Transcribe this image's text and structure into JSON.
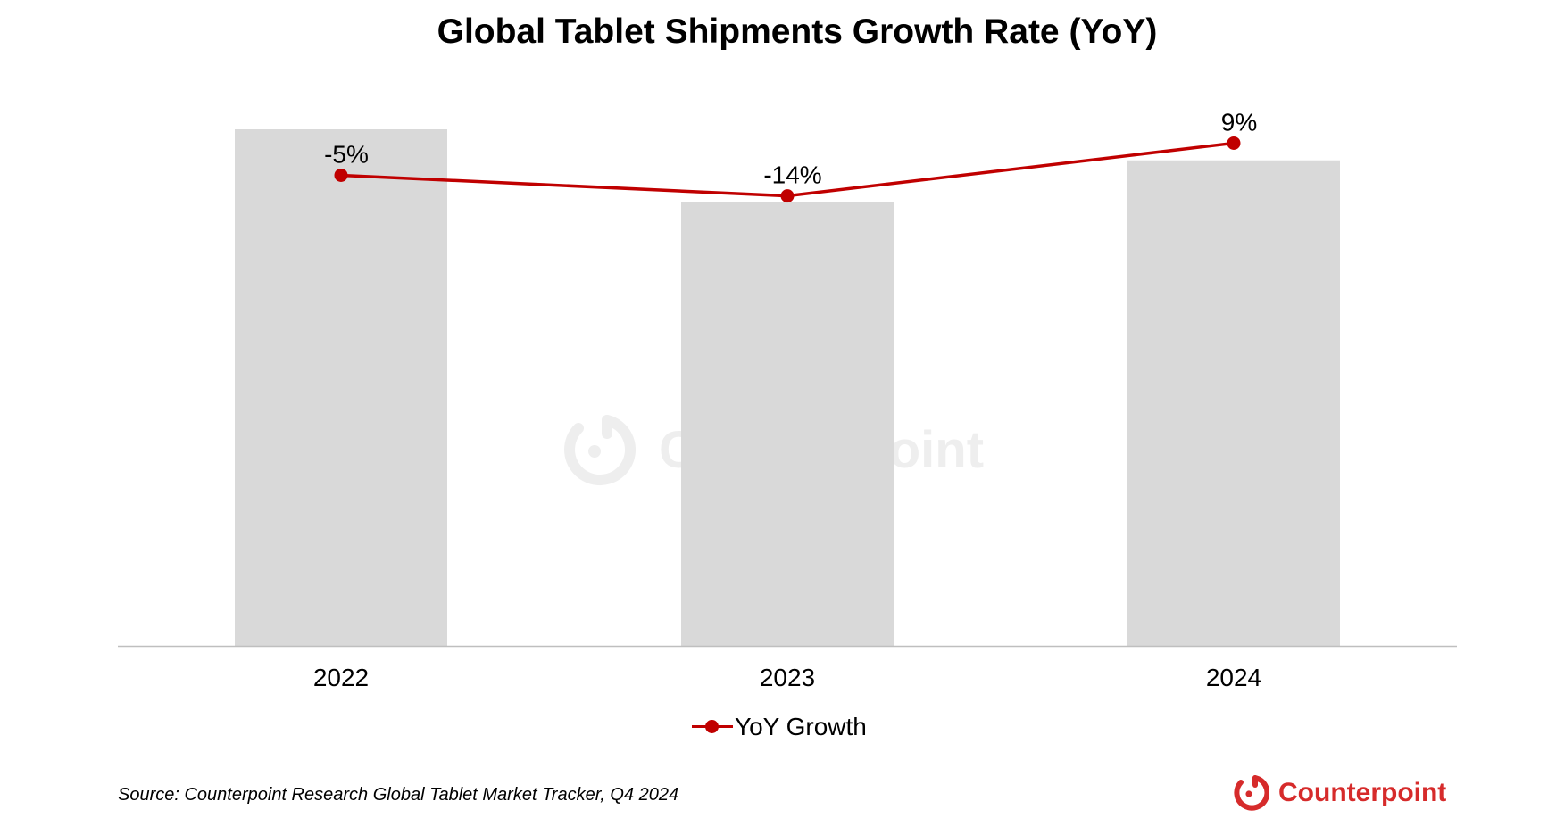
{
  "chart_data": {
    "type": "bar+line",
    "title": "Global Tablet Shipments Growth Rate (YoY)",
    "categories": [
      "2022",
      "2023",
      "2024"
    ],
    "series": [
      {
        "name": "YoY Growth",
        "kind": "line",
        "values": [
          -5,
          -14,
          9
        ],
        "data_labels": [
          "-5%",
          "-14%",
          "9%"
        ],
        "color": "#C00000"
      },
      {
        "kind": "bar",
        "values": [
          100,
          86,
          94
        ],
        "color": "#D9D9D9"
      }
    ],
    "ylim": [
      0,
      100
    ],
    "line_ylim": [
      -210,
      15
    ],
    "grid": false,
    "legend_position": "bottom"
  },
  "source": "Source: Counterpoint Research Global Tablet Market Tracker, Q4 2024",
  "brand": {
    "name": "Counterpoint",
    "color": "#D62B2B",
    "icon": "counterpoint-logo-icon"
  },
  "watermark": {
    "text": "Counterpoint",
    "color": "#EEEEEE"
  },
  "colors": {
    "bar": "#D9D9D9",
    "line": "#C00000",
    "axis": "#BFBFBF"
  }
}
